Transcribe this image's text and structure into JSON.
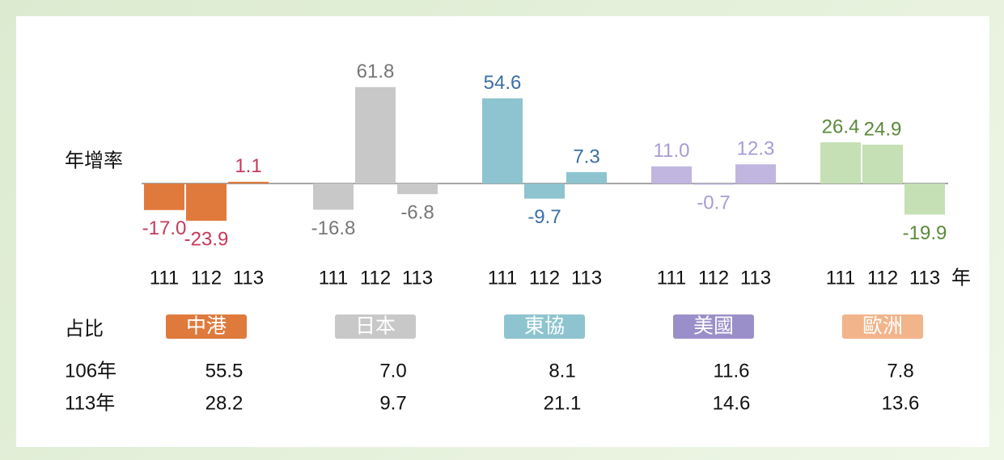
{
  "chart_data": {
    "type": "bar",
    "y_label": "年增率",
    "years": [
      "111",
      "112",
      "113"
    ],
    "year_unit": "年",
    "groups": [
      {
        "name": "中港",
        "color": "#e07a3c",
        "badge_color": "#e07a3c",
        "label_color": "#c8385a",
        "values": [
          -17.0,
          -23.9,
          1.1
        ],
        "value_labels": [
          "-17.0",
          "-23.9",
          "1.1"
        ]
      },
      {
        "name": "日本",
        "color": "#c8c8c8",
        "badge_color": "#c8c8c8",
        "label_color": "#777777",
        "values": [
          -16.8,
          61.8,
          -6.8
        ],
        "value_labels": [
          "-16.8",
          "61.8",
          "-6.8"
        ]
      },
      {
        "name": "東協",
        "color": "#8dc4cf",
        "badge_color": "#8dc4cf",
        "label_color": "#3b6fa8",
        "values": [
          54.6,
          -9.7,
          7.3
        ],
        "value_labels": [
          "54.6",
          "-9.7",
          "7.3"
        ]
      },
      {
        "name": "美國",
        "color": "#c0b6e0",
        "badge_color": "#9b8fc9",
        "label_color": "#a99bd4",
        "values": [
          11.0,
          -0.7,
          12.3
        ],
        "value_labels": [
          "11.0",
          "-0.7",
          "12.3"
        ]
      },
      {
        "name": "歐洲",
        "color": "#c5e0b4",
        "badge_color": "#f2b48a",
        "label_color": "#5a8a3a",
        "values": [
          26.4,
          24.9,
          -19.9
        ],
        "value_labels": [
          "26.4",
          "24.9",
          "-19.9"
        ]
      }
    ],
    "share_label": "占比",
    "share_rows": [
      {
        "label": "106年",
        "values": [
          "55.5",
          "7.0",
          "8.1",
          "11.6",
          "7.8"
        ]
      },
      {
        "label": "113年",
        "values": [
          "28.2",
          "9.7",
          "21.1",
          "14.6",
          "13.6"
        ]
      }
    ]
  }
}
